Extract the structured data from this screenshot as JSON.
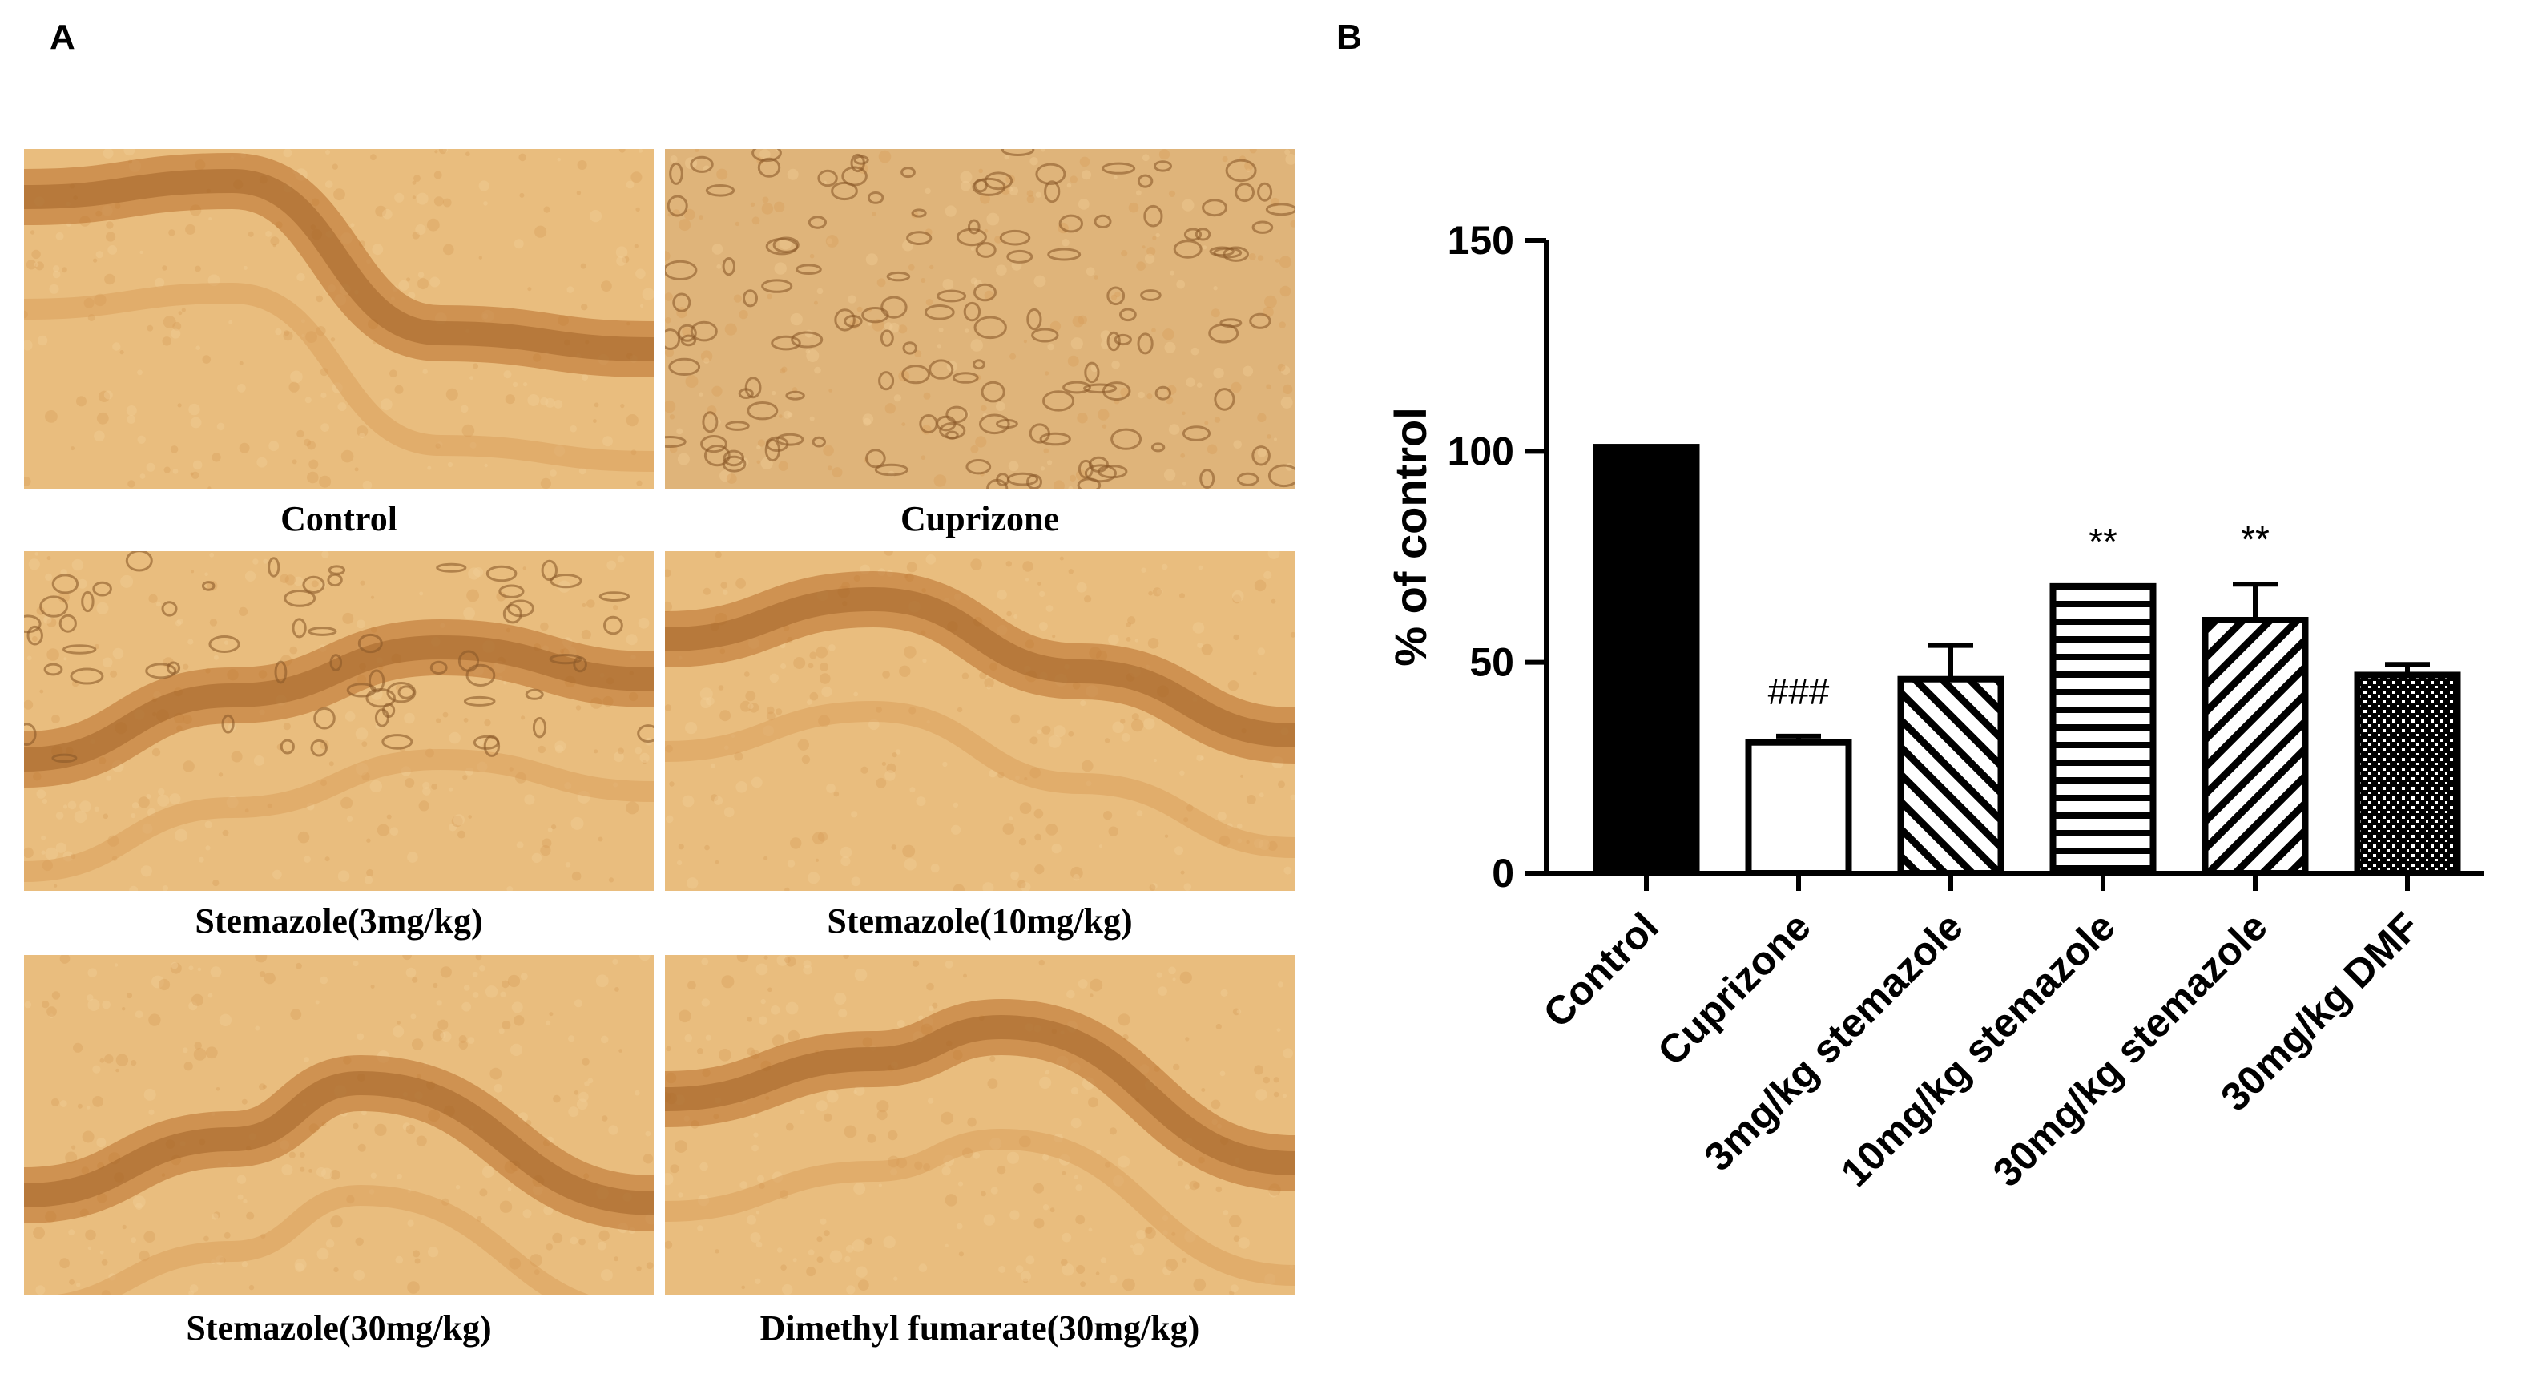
{
  "panels": {
    "a_label": "A",
    "b_label": "B"
  },
  "micrographs": [
    {
      "caption": "Control"
    },
    {
      "caption": "Cuprizone"
    },
    {
      "caption": "Stemazole(3mg/kg)"
    },
    {
      "caption": "Stemazole(10mg/kg)"
    },
    {
      "caption": "Stemazole(30mg/kg)"
    },
    {
      "caption": "Dimethyl fumarate(30mg/kg)"
    }
  ],
  "colors": {
    "stain_light": "#e9bd7e",
    "stain_mid": "#d89a55",
    "stain_dark": "#b9702c",
    "bar": "#000000"
  },
  "chart_data": {
    "type": "bar",
    "ylabel": "% of control",
    "xlabel": "",
    "ylim": [
      0,
      150
    ],
    "yticks": [
      0,
      50,
      100,
      150
    ],
    "categories": [
      "Control",
      "Cuprizone",
      "3mg/kg stemazole",
      "10mg/kg stemazole",
      "30mg/kg stemazole",
      "30mg/kg DMF"
    ],
    "values": [
      101,
      31,
      46,
      68,
      60,
      47
    ],
    "errors": [
      0,
      1.5,
      8,
      0,
      8.5,
      2.5
    ],
    "annotations": [
      "",
      "###",
      "",
      "**",
      "**",
      ""
    ],
    "patterns": [
      "solid",
      "empty",
      "diagonal-back",
      "horizontal",
      "diagonal-forward",
      "checker"
    ]
  }
}
